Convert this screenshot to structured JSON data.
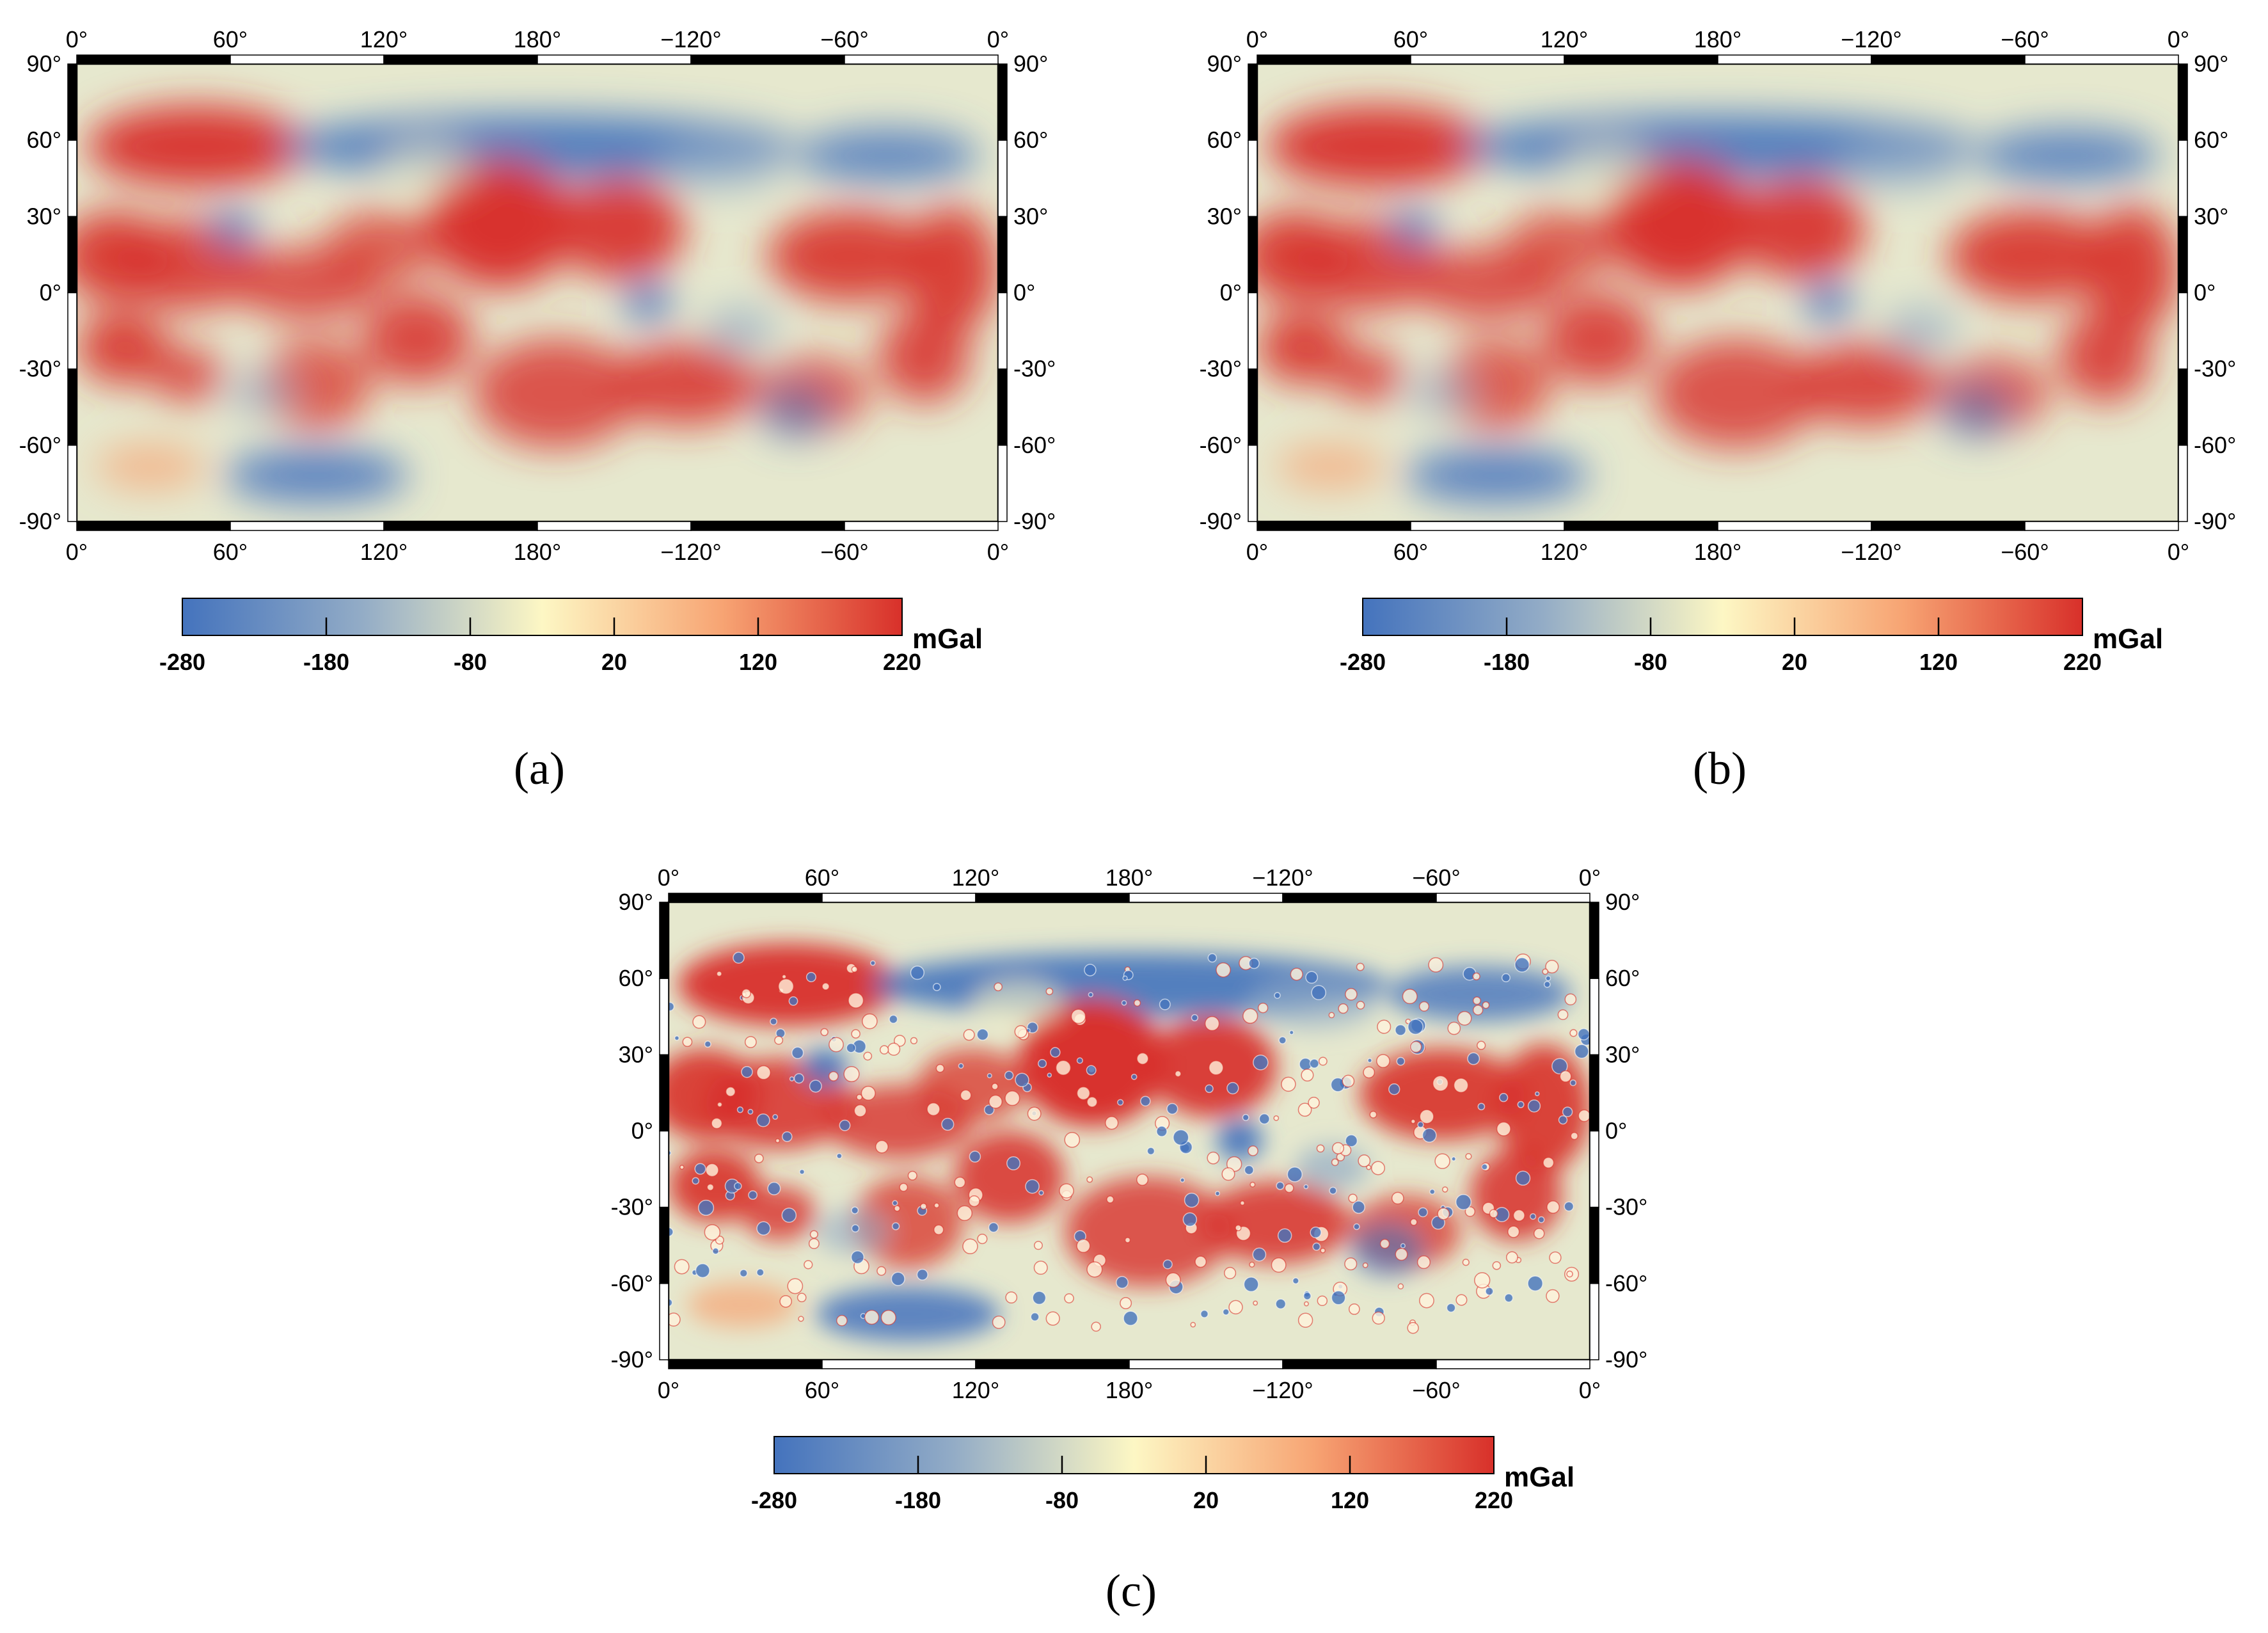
{
  "figure": {
    "panels": [
      {
        "id": "a",
        "caption": "(a)",
        "style": "smooth",
        "lon_ticks": [
          "0°",
          "60°",
          "120°",
          "180°",
          "−120°",
          "−60°",
          "0°"
        ],
        "lat_ticks": [
          "90°",
          "60°",
          "30°",
          "0°",
          "-30°",
          "-60°",
          "-90°"
        ],
        "colorbar": {
          "ticks": [
            "-280",
            "-180",
            "-80",
            "20",
            "120",
            "220"
          ],
          "unit": "mGal",
          "min": -280,
          "max": 220
        }
      },
      {
        "id": "b",
        "caption": "(b)",
        "style": "smooth",
        "lon_ticks": [
          "0°",
          "60°",
          "120°",
          "180°",
          "−120°",
          "−60°",
          "0°"
        ],
        "lat_ticks": [
          "90°",
          "60°",
          "30°",
          "0°",
          "-30°",
          "-60°",
          "-90°"
        ],
        "colorbar": {
          "ticks": [
            "-280",
            "-180",
            "-80",
            "20",
            "120",
            "220"
          ],
          "unit": "mGal",
          "min": -280,
          "max": 220
        }
      },
      {
        "id": "c",
        "caption": "(c)",
        "style": "detailed",
        "lon_ticks": [
          "0°",
          "60°",
          "120°",
          "180°",
          "−120°",
          "−60°",
          "0°"
        ],
        "lat_ticks": [
          "90°",
          "60°",
          "30°",
          "0°",
          "-30°",
          "-60°",
          "-90°"
        ],
        "colorbar": {
          "ticks": [
            "-280",
            "-180",
            "-80",
            "20",
            "120",
            "220"
          ],
          "unit": "mGal",
          "min": -280,
          "max": 220
        }
      }
    ],
    "colors": {
      "colormap": [
        "#4473bd",
        "#93acc6",
        "#fdf7c4",
        "#f7a473",
        "#d8302a"
      ],
      "background": "#e6e8ce",
      "frame": "#000000"
    }
  }
}
